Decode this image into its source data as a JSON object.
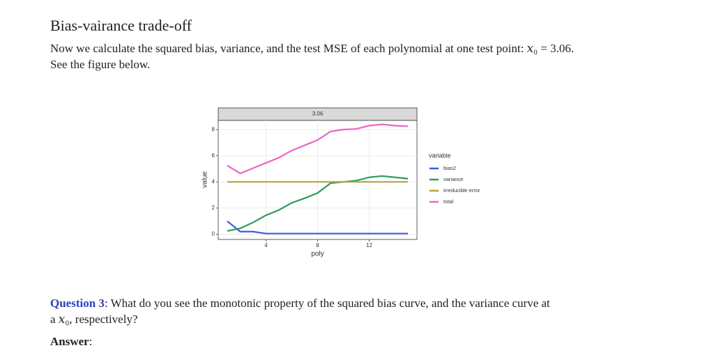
{
  "header": {
    "title": "Bias-vairance trade-off"
  },
  "intro": {
    "lines": [
      "Now we calculate the squared bias, variance, and the test MSE of each polynomial at one test point: 𝑥₀ = 3.06.",
      "See the figure below."
    ]
  },
  "question": {
    "label": "Question 3",
    "lines": [
      ": What do you see the monotonic property of the squared bias curve, and the variance curve at",
      "a 𝑥₀, respectively?"
    ]
  },
  "answer": {
    "label": "Answer",
    "suffix": ":"
  },
  "chart_data": {
    "type": "line",
    "facet_label": "3.06",
    "x_label": "poly",
    "y_label": "value",
    "legend_title": "variable",
    "x": [
      1,
      2,
      3,
      4,
      5,
      6,
      7,
      8,
      9,
      10,
      11,
      12,
      13,
      14,
      15
    ],
    "series": [
      {
        "name": "bias2",
        "color": "#3f5bd8",
        "values": [
          1.0,
          0.2,
          0.2,
          0.05,
          0.05,
          0.05,
          0.05,
          0.05,
          0.05,
          0.05,
          0.05,
          0.05,
          0.05,
          0.05,
          0.05
        ]
      },
      {
        "name": "variance",
        "color": "#2e9b5f",
        "values": [
          0.25,
          0.45,
          0.9,
          1.45,
          1.85,
          2.4,
          2.75,
          3.15,
          3.9,
          4.0,
          4.1,
          4.35,
          4.45,
          4.35,
          4.25
        ]
      },
      {
        "name": "irreducible error",
        "color": "#b5a33a",
        "values": [
          4,
          4,
          4,
          4,
          4,
          4,
          4,
          4,
          4,
          4,
          4,
          4,
          4,
          4,
          4
        ]
      },
      {
        "name": "total",
        "color": "#ee64c4",
        "values": [
          5.25,
          4.65,
          5.05,
          5.45,
          5.85,
          6.4,
          6.8,
          7.2,
          7.85,
          8.0,
          8.05,
          8.3,
          8.4,
          8.3,
          8.25
        ]
      }
    ],
    "xlim": [
      0.3,
      15.7
    ],
    "ylim": [
      -0.4,
      8.7
    ],
    "xticks": [
      4,
      8,
      12
    ],
    "yticks": [
      0,
      2,
      4,
      6,
      8
    ],
    "grid": true
  }
}
